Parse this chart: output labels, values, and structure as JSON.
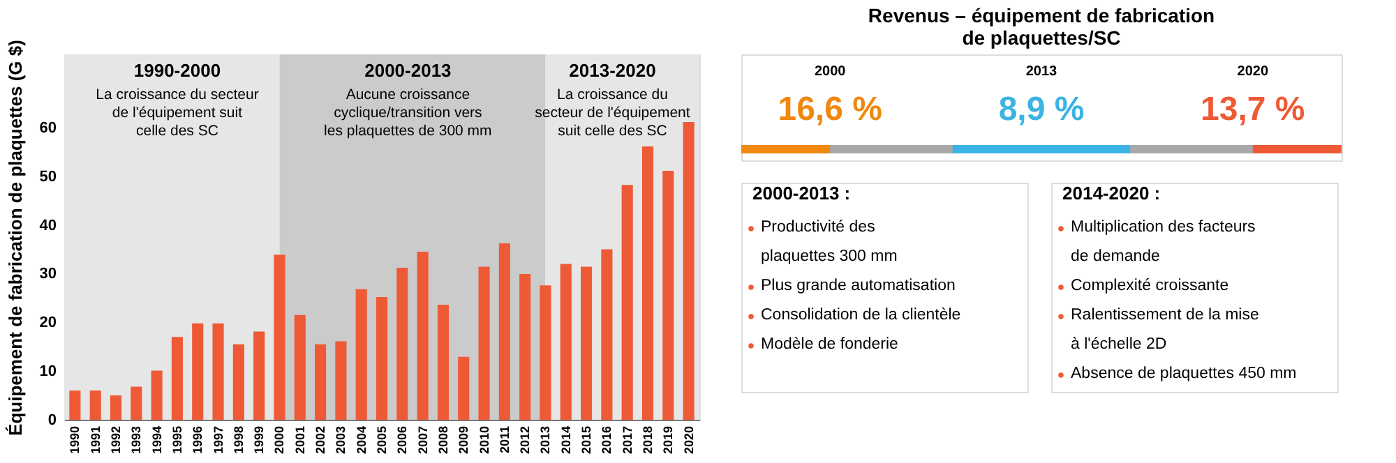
{
  "chart_data": [
    {
      "type": "bar",
      "ylabel": "Équipement de fabrication de plaquettes (G $)",
      "categories": [
        "1990",
        "1991",
        "1992",
        "1993",
        "1994",
        "1995",
        "1996",
        "1997",
        "1998",
        "1999",
        "2000",
        "2001",
        "2002",
        "2003",
        "2004",
        "2005",
        "2006",
        "2007",
        "2008",
        "2009",
        "2010",
        "2011",
        "2012",
        "2013",
        "2014",
        "2015",
        "2016",
        "2017",
        "2018",
        "2019",
        "2020"
      ],
      "values": [
        6.0,
        6.0,
        5.0,
        6.8,
        10.1,
        17.0,
        19.8,
        19.8,
        15.5,
        18.1,
        33.9,
        21.5,
        15.5,
        16.1,
        26.8,
        25.2,
        31.2,
        34.5,
        23.6,
        12.9,
        31.4,
        36.2,
        29.9,
        27.6,
        32.0,
        31.4,
        35.0,
        48.2,
        56.1,
        51.1,
        61.1
      ],
      "color": "#ee5a35",
      "ylim": [
        0,
        75
      ],
      "yticks": [
        0,
        10,
        20,
        30,
        40,
        50,
        60
      ],
      "grid": false,
      "bands": [
        {
          "axis": "x",
          "from": "1990",
          "to": "2000",
          "color": "#e6e6e6",
          "label": "1990-2000\nLa croissance du secteur\nde l'équipement suit\ncelle des SC"
        },
        {
          "axis": "x",
          "from": "2000",
          "to": "2013",
          "color": "#cbcbcb",
          "label": "2000-2013\nAucune croissance\ncyclique/transition vers\nles plaquettes de 300 mm"
        },
        {
          "axis": "x",
          "from": "2013",
          "to": "2020",
          "color": "#e6e6e6",
          "label": "2013-2020\nLa croissance du\nsecteur de l'équipement\nsuit celle des SC"
        }
      ]
    },
    {
      "type": "other",
      "title": "Revenus – équipement de fabrication\nde plaquettes/SC",
      "categories": [
        "2000",
        "2013",
        "2020"
      ],
      "values": [
        16.6,
        8.9,
        13.7
      ],
      "value_labels": [
        "16,6 %",
        "8,9 %",
        "13,7 %"
      ],
      "colors": [
        "#f0880f",
        "#3bb3e4",
        "#ee5a35"
      ]
    },
    {
      "type": "other",
      "annotations": [
        "2000-2013 :",
        "Productivité des\nplaquettes 300 mm",
        "Plus grande automatisation",
        "Consolidation de la clientèle",
        "Modèle de fonderie"
      ]
    },
    {
      "type": "other",
      "annotations": [
        "2014-2020 :",
        "Multiplication des facteurs\nde demande",
        "Complexité croissante",
        "Ralentissement de la mise\nà l'échelle 2D",
        "Absence de plaquettes 450 mm"
      ]
    }
  ]
}
